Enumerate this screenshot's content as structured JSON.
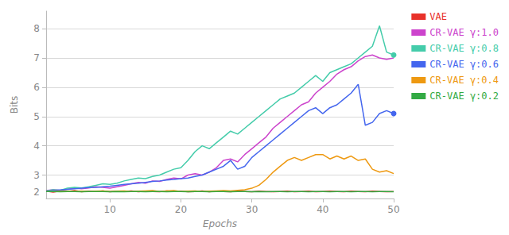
{
  "chart_data": {
    "type": "line",
    "xlabel": "Epochs",
    "ylabel": "Bits",
    "x": [
      1,
      2,
      3,
      4,
      5,
      6,
      7,
      8,
      9,
      10,
      11,
      12,
      13,
      14,
      15,
      16,
      17,
      18,
      19,
      20,
      21,
      22,
      23,
      24,
      25,
      26,
      27,
      28,
      29,
      30,
      31,
      32,
      33,
      34,
      35,
      36,
      37,
      38,
      39,
      40,
      41,
      42,
      43,
      44,
      45,
      46,
      47,
      48,
      49,
      50
    ],
    "xlim": [
      1,
      50
    ],
    "xticks": [
      10,
      20,
      30,
      40,
      50
    ],
    "ylim": [
      2.2,
      8.6
    ],
    "yticks": [
      3,
      4,
      5,
      6,
      7,
      8
    ],
    "annotations": [
      {
        "text": "2",
        "y": 2.25
      }
    ],
    "grid": true,
    "legend": "right",
    "series": [
      {
        "name": "VAE",
        "color": "#e8312a",
        "values": [
          2.45,
          2.42,
          2.46,
          2.44,
          2.47,
          2.43,
          2.45,
          2.44,
          2.46,
          2.43,
          2.45,
          2.44,
          2.46,
          2.43,
          2.45,
          2.44,
          2.43,
          2.46,
          2.44,
          2.45,
          2.43,
          2.44,
          2.46,
          2.43,
          2.45,
          2.44,
          2.43,
          2.45,
          2.44,
          2.43,
          2.45,
          2.44,
          2.43,
          2.44,
          2.45,
          2.43,
          2.44,
          2.45,
          2.43,
          2.44,
          2.45,
          2.44,
          2.43,
          2.45,
          2.44,
          2.43,
          2.45,
          2.44,
          2.43,
          2.44
        ]
      },
      {
        "name": "CR-VAE γ:1.0",
        "color": "#cc44cc",
        "values": [
          2.47,
          2.5,
          2.48,
          2.52,
          2.55,
          2.53,
          2.56,
          2.6,
          2.58,
          2.55,
          2.6,
          2.65,
          2.7,
          2.75,
          2.72,
          2.8,
          2.78,
          2.85,
          2.9,
          2.87,
          3.0,
          3.05,
          3.0,
          3.1,
          3.25,
          3.5,
          3.55,
          3.45,
          3.7,
          3.9,
          4.1,
          4.3,
          4.6,
          4.8,
          5.0,
          5.2,
          5.4,
          5.5,
          5.8,
          6.0,
          6.2,
          6.45,
          6.6,
          6.7,
          6.9,
          7.05,
          7.1,
          7.0,
          6.95,
          7.0
        ]
      },
      {
        "name": "CR-VAE γ:0.8",
        "color": "#44ccaa",
        "marker": "endpoint",
        "values": [
          2.46,
          2.5,
          2.48,
          2.55,
          2.58,
          2.56,
          2.6,
          2.65,
          2.7,
          2.68,
          2.72,
          2.8,
          2.85,
          2.9,
          2.88,
          2.95,
          3.0,
          3.1,
          3.2,
          3.25,
          3.5,
          3.8,
          4.0,
          3.9,
          4.1,
          4.3,
          4.5,
          4.4,
          4.6,
          4.8,
          5.0,
          5.2,
          5.4,
          5.6,
          5.7,
          5.8,
          6.0,
          6.2,
          6.4,
          6.2,
          6.5,
          6.6,
          6.7,
          6.8,
          7.0,
          7.2,
          7.4,
          8.1,
          7.2,
          7.1
        ]
      },
      {
        "name": "CR-VAE γ:0.6",
        "color": "#4466ee",
        "marker": "endpoint",
        "values": [
          2.45,
          2.47,
          2.49,
          2.51,
          2.53,
          2.55,
          2.57,
          2.58,
          2.6,
          2.62,
          2.65,
          2.68,
          2.7,
          2.72,
          2.75,
          2.78,
          2.8,
          2.83,
          2.85,
          2.88,
          2.9,
          2.95,
          3.0,
          3.1,
          3.2,
          3.3,
          3.5,
          3.2,
          3.3,
          3.6,
          3.8,
          4.0,
          4.2,
          4.4,
          4.6,
          4.8,
          5.0,
          5.2,
          5.3,
          5.1,
          5.3,
          5.4,
          5.6,
          5.8,
          6.1,
          4.7,
          4.8,
          5.1,
          5.2,
          5.1
        ]
      },
      {
        "name": "CR-VAE γ:0.4",
        "color": "#ee9911",
        "values": [
          2.44,
          2.44,
          2.45,
          2.45,
          2.44,
          2.45,
          2.44,
          2.45,
          2.46,
          2.44,
          2.45,
          2.46,
          2.44,
          2.45,
          2.46,
          2.47,
          2.44,
          2.46,
          2.47,
          2.44,
          2.45,
          2.46,
          2.44,
          2.45,
          2.46,
          2.47,
          2.46,
          2.48,
          2.5,
          2.55,
          2.65,
          2.85,
          3.1,
          3.3,
          3.5,
          3.6,
          3.5,
          3.6,
          3.7,
          3.7,
          3.55,
          3.65,
          3.55,
          3.65,
          3.5,
          3.55,
          3.2,
          3.1,
          3.15,
          3.05
        ]
      },
      {
        "name": "CR-VAE γ:0.2",
        "color": "#33aa44",
        "values": [
          2.44,
          2.44,
          2.43,
          2.44,
          2.44,
          2.43,
          2.44,
          2.44,
          2.44,
          2.43,
          2.44,
          2.43,
          2.44,
          2.44,
          2.43,
          2.44,
          2.44,
          2.43,
          2.44,
          2.44,
          2.43,
          2.44,
          2.44,
          2.43,
          2.44,
          2.44,
          2.43,
          2.44,
          2.44,
          2.43,
          2.44,
          2.43,
          2.44,
          2.44,
          2.43,
          2.44,
          2.44,
          2.43,
          2.44,
          2.44,
          2.43,
          2.44,
          2.44,
          2.43,
          2.44,
          2.44,
          2.43,
          2.44,
          2.44,
          2.43
        ]
      }
    ]
  }
}
